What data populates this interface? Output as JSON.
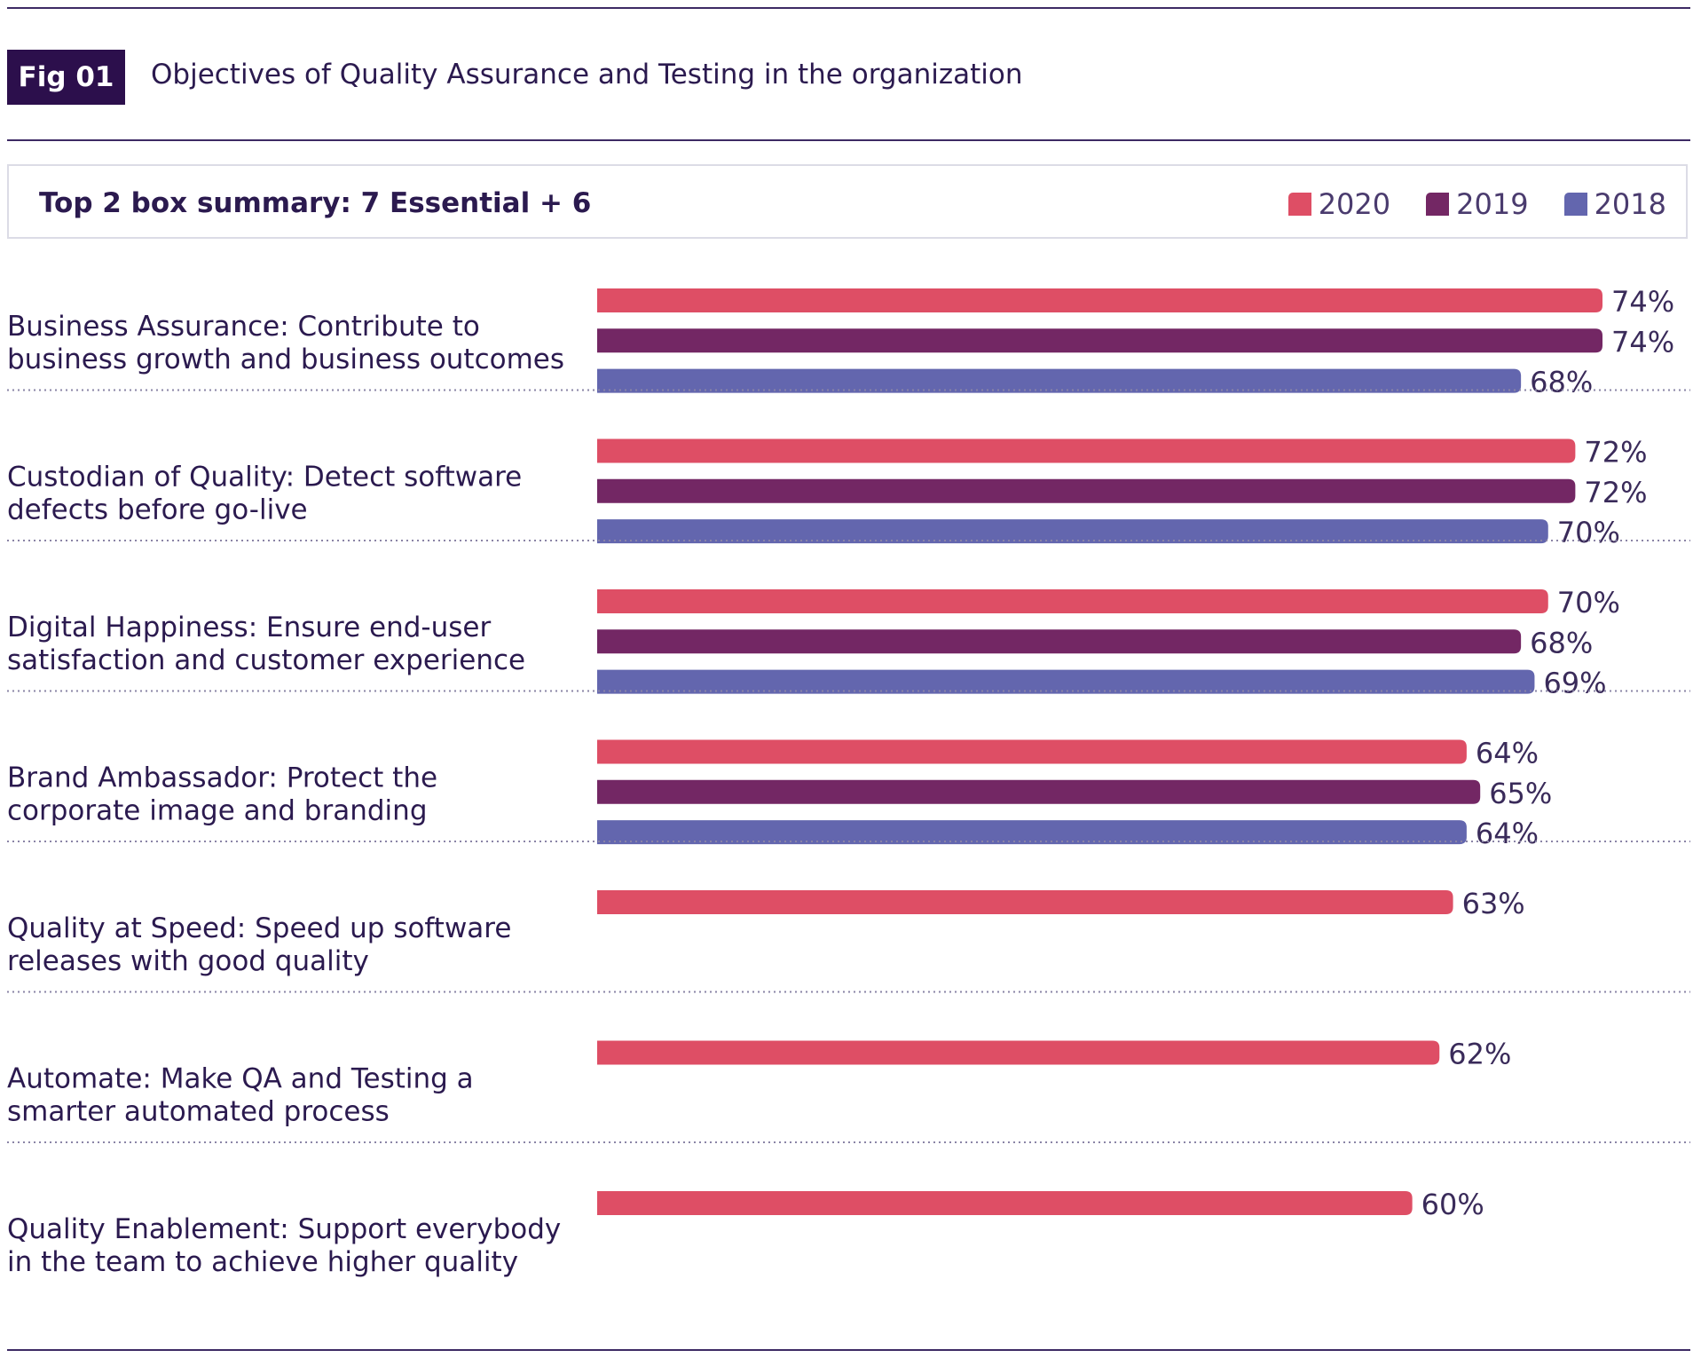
{
  "header": {
    "fig_label": "Fig 01",
    "title": "Objectives of Quality Assurance and Testing in the organization"
  },
  "summary": {
    "title": "Top 2 box summary: 7 Essential + 6"
  },
  "colors": {
    "2020": "#de4e65",
    "2019": "#732764",
    "2018": "#6366ae"
  },
  "chart_data": {
    "type": "bar",
    "orientation": "horizontal",
    "title": "Objectives of Quality Assurance and Testing in the organization",
    "subtitle": "Top 2 box summary: 7 Essential + 6",
    "xlabel": "",
    "ylabel": "",
    "unit": "%",
    "xlim": [
      0,
      80
    ],
    "legend_position": "top-right",
    "categories": [
      [
        "Business Assurance: Contribute to",
        "business growth and business outcomes"
      ],
      [
        "Custodian of Quality: Detect software",
        "defects before go-live"
      ],
      [
        "Digital Happiness: Ensure end-user",
        "satisfaction and customer experience"
      ],
      [
        "Brand Ambassador: Protect the",
        "corporate image and branding"
      ],
      [
        "Quality at Speed: Speed up software",
        "releases with good quality"
      ],
      [
        "Automate: Make QA and Testing a",
        "smarter automated process"
      ],
      [
        "Quality Enablement: Support everybody",
        "in the team to achieve higher quality"
      ]
    ],
    "series": [
      {
        "name": "2020",
        "values": [
          74,
          72,
          70,
          64,
          63,
          62,
          60
        ],
        "labels": [
          "74%",
          "72%",
          "70%",
          "64%",
          "63%",
          "62%",
          "60%"
        ]
      },
      {
        "name": "2019",
        "values": [
          74,
          72,
          68,
          65,
          null,
          null,
          null
        ],
        "labels": [
          "74%",
          "72%",
          "68%",
          "65%",
          null,
          null,
          null
        ]
      },
      {
        "name": "2018",
        "values": [
          68,
          70,
          69,
          64,
          null,
          null,
          null
        ],
        "labels": [
          "68%",
          "70%",
          "69%",
          "64%",
          null,
          null,
          null
        ]
      }
    ]
  }
}
